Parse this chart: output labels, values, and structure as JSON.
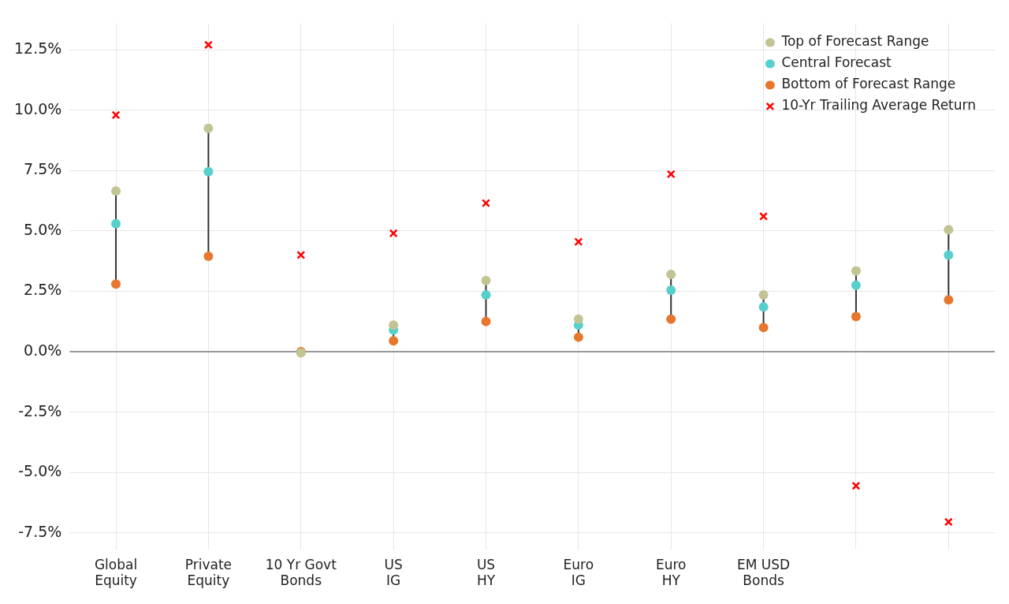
{
  "chart_data": {
    "type": "scatter",
    "categories": [
      "Global Equity",
      "Private Equity",
      "10 Yr Govt Bonds",
      "US IG",
      "US HY",
      "Euro IG",
      "Euro HY",
      "EM USD Bonds",
      null,
      null
    ],
    "series": [
      {
        "name": "Top of Forecast Range",
        "color": "#c2c494",
        "marker": "circle",
        "values": [
          6.65,
          9.25,
          -0.05,
          1.1,
          2.95,
          1.35,
          3.2,
          2.35,
          3.35,
          5.05
        ]
      },
      {
        "name": "Central Forecast",
        "color": "#55d0cc",
        "marker": "circle",
        "values": [
          5.3,
          7.45,
          null,
          0.9,
          2.35,
          1.1,
          2.55,
          1.85,
          2.75,
          4.0
        ]
      },
      {
        "name": "Bottom of Forecast Range",
        "color": "#e8772e",
        "marker": "circle",
        "values": [
          2.8,
          3.95,
          0.0,
          0.45,
          1.25,
          0.6,
          1.35,
          1.0,
          1.45,
          2.15
        ]
      },
      {
        "name": "10-Yr Trailing Average Return",
        "color": "#ff0000",
        "marker": "cross",
        "values": [
          9.8,
          12.7,
          4.0,
          4.9,
          6.15,
          4.55,
          7.35,
          5.6,
          -5.55,
          -7.05
        ]
      }
    ],
    "ylim": [
      -8.2,
      13.6
    ],
    "yticks": [
      {
        "value": -7.5,
        "label": "-7.5%"
      },
      {
        "value": -5,
        "label": "-5.0%"
      },
      {
        "value": -2.5,
        "label": "-2.5%"
      },
      {
        "value": 0,
        "label": "0.0%"
      },
      {
        "value": 2.5,
        "label": "2.5%"
      },
      {
        "value": 5,
        "label": "5.0%"
      },
      {
        "value": 7.5,
        "label": "7.5%"
      },
      {
        "value": 10,
        "label": "10.0%"
      },
      {
        "value": 12.5,
        "label": "12.5%"
      }
    ],
    "ref_lines": [
      {
        "axis": "y",
        "value": 0,
        "color": "#999999"
      }
    ],
    "grid": true,
    "legend": "top right"
  }
}
